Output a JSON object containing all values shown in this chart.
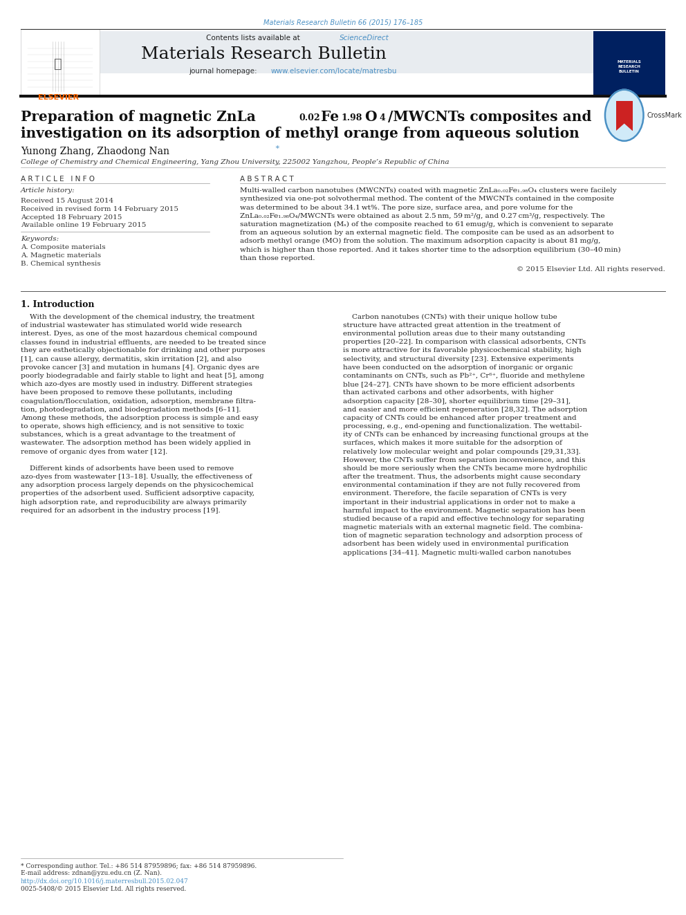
{
  "page_width": 9.92,
  "page_height": 13.23,
  "bg_color": "#ffffff",
  "top_citation": "Materials Research Bulletin 66 (2015) 176–185",
  "top_citation_color": "#4a90c4",
  "header_bg": "#e8ecf0",
  "journal_name": "Materials Research Bulletin",
  "contents_text": "Contents lists available at ",
  "science_direct": "ScienceDirect",
  "journal_homepage_text": "journal homepage: ",
  "journal_url": "www.elsevier.com/locate/matresbu",
  "link_color": "#4a90c4",
  "article_info_header": "A R T I C L E   I N F O",
  "abstract_header": "A B S T R A C T",
  "article_history_header": "Article history:",
  "received_date": "Received 15 August 2014",
  "revised_date": "Received in revised form 14 February 2015",
  "accepted_date": "Accepted 18 February 2015",
  "available_date": "Available online 19 February 2015",
  "keywords_header": "Keywords:",
  "keyword1": "A. Composite materials",
  "keyword2": "A. Magnetic materials",
  "keyword3": "B. Chemical synthesis",
  "copyright_text": "© 2015 Elsevier Ltd. All rights reserved.",
  "section1_header": "1. Introduction",
  "footer_text1": "* Corresponding author. Tel.: +86 514 87959896; fax: +86 514 87959896.",
  "footer_text2": "E-mail address: zdnan@yzu.edu.cn (Z. Nan).",
  "footer_url": "http://dx.doi.org/10.1016/j.materresbull.2015.02.047",
  "footer_text3": "0025-5408/© 2015 Elsevier Ltd. All rights reserved.",
  "elsevier_color": "#ff6600",
  "dark_navy": "#002060",
  "affiliation": "College of Chemistry and Chemical Engineering, Yang Zhou University, 225002 Yangzhou, People’s Republic of China",
  "abstract_lines": [
    "Multi-walled carbon nanotubes (MWCNTs) coated with magnetic ZnLa₀.₀₂Fe₁.₉₈O₄ clusters were facilely",
    "synthesized via one-pot solvothermal method. The content of the MWCNTs contained in the composite",
    "was determined to be about 34.1 wt%. The pore size, surface area, and pore volume for the",
    "ZnLa₀.₀₂Fe₁.₉₈O₄/MWCNTs were obtained as about 2.5 nm, 59 m²/g, and 0.27 cm³/g, respectively. The",
    "saturation magnetization (Mₛ) of the composite reached to 61 emug/g, which is convenient to separate",
    "from an aqueous solution by an external magnetic field. The composite can be used as an adsorbent to",
    "adsorb methyl orange (MO) from the solution. The maximum adsorption capacity is about 81 mg/g,",
    "which is higher than those reported. And it takes shorter time to the adsorption equilibrium (30–40 min)",
    "than those reported."
  ],
  "intro1_lines": [
    "    With the development of the chemical industry, the treatment",
    "of industrial wastewater has stimulated world wide research",
    "interest. Dyes, as one of the most hazardous chemical compound",
    "classes found in industrial effluents, are needed to be treated since",
    "they are esthetically objectionable for drinking and other purposes",
    "[1], can cause allergy, dermatitis, skin irritation [2], and also",
    "provoke cancer [3] and mutation in humans [4]. Organic dyes are",
    "poorly biodegradable and fairly stable to light and heat [5], among",
    "which azo-dyes are mostly used in industry. Different strategies",
    "have been proposed to remove these pollutants, including",
    "coagulation/flocculation, oxidation, adsorption, membrane filtra-",
    "tion, photodegradation, and biodegradation methods [6–11].",
    "Among these methods, the adsorption process is simple and easy",
    "to operate, shows high efficiency, and is not sensitive to toxic",
    "substances, which is a great advantage to the treatment of",
    "wastewater. The adsorption method has been widely applied in",
    "remove of organic dyes from water [12].",
    "",
    "    Different kinds of adsorbents have been used to remove",
    "azo-dyes from wastewater [13–18]. Usually, the effectiveness of",
    "any adsorption process largely depends on the physicochemical",
    "properties of the adsorbent used. Sufficient adsorptive capacity,",
    "high adsorption rate, and reproducibility are always primarily",
    "required for an adsorbent in the industry process [19]."
  ],
  "intro2_lines": [
    "    Carbon nanotubes (CNTs) with their unique hollow tube",
    "structure have attracted great attention in the treatment of",
    "environmental pollution areas due to their many outstanding",
    "properties [20–22]. In comparison with classical adsorbents, CNTs",
    "is more attractive for its favorable physicochemical stability, high",
    "selectivity, and structural diversity [23]. Extensive experiments",
    "have been conducted on the adsorption of inorganic or organic",
    "contaminants on CNTs, such as Pb²⁺, Cr⁶⁺, fluoride and methylene",
    "blue [24–27]. CNTs have shown to be more efficient adsorbents",
    "than activated carbons and other adsorbents, with higher",
    "adsorption capacity [28–30], shorter equilibrium time [29–31],",
    "and easier and more efficient regeneration [28,32]. The adsorption",
    "capacity of CNTs could be enhanced after proper treatment and",
    "processing, e.g., end-opening and functionalization. The wettabil-",
    "ity of CNTs can be enhanced by increasing functional groups at the",
    "surfaces, which makes it more suitable for the adsorption of",
    "relatively low molecular weight and polar compounds [29,31,33].",
    "However, the CNTs suffer from separation inconvenience, and this",
    "should be more seriously when the CNTs became more hydrophilic",
    "after the treatment. Thus, the adsorbents might cause secondary",
    "environmental contamination if they are not fully recovered from",
    "environment. Therefore, the facile separation of CNTs is very",
    "important in their industrial applications in order not to make a",
    "harmful impact to the environment. Magnetic separation has been",
    "studied because of a rapid and effective technology for separating",
    "magnetic materials with an external magnetic field. The combina-",
    "tion of magnetic separation technology and adsorption process of",
    "adsorbent has been widely used in environmental purification",
    "applications [34–41]. Magnetic multi-walled carbon nanotubes"
  ]
}
